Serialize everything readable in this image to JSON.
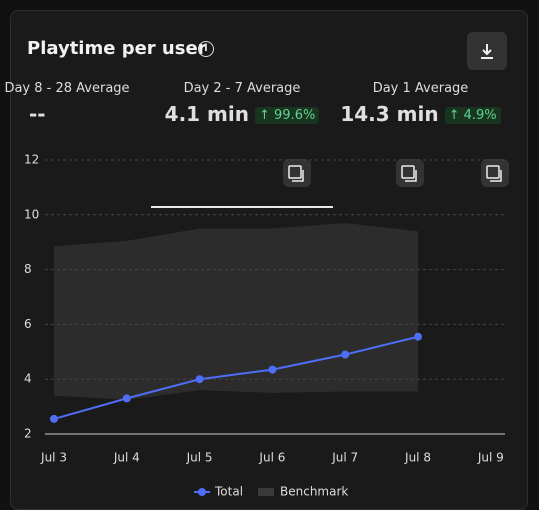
{
  "header": {
    "title": "Playtime per user"
  },
  "tabs": [
    {
      "label": "Day 8 - 28 Average",
      "value": "--"
    },
    {
      "label": "Day 2 - 7 Average",
      "value": "4.1 min",
      "change": "99.6%"
    },
    {
      "label": "Day 1 Average",
      "value": "14.3 min",
      "change": "4.9%"
    }
  ],
  "chart_data": {
    "type": "line",
    "categories": [
      "Jul 3",
      "Jul 4",
      "Jul 5",
      "Jul 6",
      "Jul 7",
      "Jul 8",
      "Jul 9"
    ],
    "series": [
      {
        "name": "Total",
        "color": "#4f6ef7",
        "values": [
          2.55,
          3.3,
          4.0,
          4.35,
          4.9,
          5.55,
          null
        ]
      },
      {
        "name": "Benchmark",
        "color": "#2c2c2c",
        "upper": [
          8.85,
          9.05,
          9.5,
          9.5,
          9.7,
          9.4,
          null
        ],
        "lower": [
          3.4,
          3.25,
          3.6,
          3.5,
          3.55,
          3.55,
          null
        ]
      }
    ],
    "ylim": [
      2,
      12
    ],
    "yticks": [
      2,
      4,
      6,
      8,
      10,
      12
    ],
    "grid": true
  }
}
